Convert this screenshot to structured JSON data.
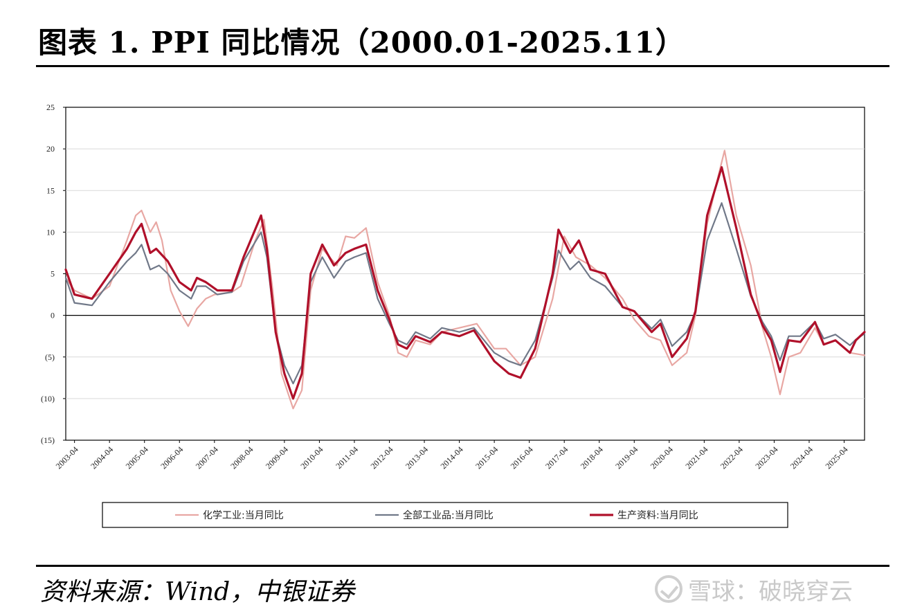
{
  "title": "图表 1. PPI 同比情况（2000.01-2025.11）",
  "source": "资料来源：Wind，中银证券",
  "watermark": {
    "text": "雪球：破晓穿云",
    "icon": "snowball-logo-icon"
  },
  "chart_data": {
    "type": "line",
    "title": "",
    "xlabel": "",
    "ylabel": "",
    "ylim": [
      -15,
      25
    ],
    "yticks": [
      25,
      20,
      15,
      10,
      5,
      0,
      -5,
      -10,
      -15
    ],
    "ytick_labels": [
      "25",
      "20",
      "15",
      "10",
      "5",
      "0",
      "(5)",
      "(10)",
      "(15)"
    ],
    "x_range": [
      "2003-01",
      "2025-11"
    ],
    "x_tick_labels": [
      "2003-04",
      "2004-04",
      "2005-04",
      "2006-04",
      "2007-04",
      "2008-04",
      "2009-04",
      "2010-04",
      "2011-04",
      "2012-04",
      "2013-04",
      "2014-04",
      "2015-04",
      "2016-04",
      "2017-04",
      "2018-04",
      "2019-04",
      "2020-04",
      "2021-04",
      "2022-04",
      "2023-04",
      "2024-04",
      "2025-04"
    ],
    "grid": true,
    "legend_position": "bottom",
    "series": [
      {
        "name": "化学工业:当月同比",
        "color": "#e8a7a3",
        "points": [
          [
            "2003-01",
            4.5
          ],
          [
            "2003-04",
            3.0
          ],
          [
            "2003-10",
            2.0
          ],
          [
            "2004-04",
            3.5
          ],
          [
            "2004-10",
            9.0
          ],
          [
            "2005-01",
            12.0
          ],
          [
            "2005-03",
            12.6
          ],
          [
            "2005-06",
            10.0
          ],
          [
            "2005-08",
            11.2
          ],
          [
            "2005-10",
            9.0
          ],
          [
            "2006-01",
            3.0
          ],
          [
            "2006-04",
            0.5
          ],
          [
            "2006-07",
            -1.3
          ],
          [
            "2006-10",
            0.8
          ],
          [
            "2007-01",
            2.0
          ],
          [
            "2007-04",
            2.5
          ],
          [
            "2007-10",
            2.8
          ],
          [
            "2008-01",
            3.5
          ],
          [
            "2008-06",
            9.0
          ],
          [
            "2008-09",
            11.5
          ],
          [
            "2008-12",
            3.0
          ],
          [
            "2009-03",
            -7.0
          ],
          [
            "2009-07",
            -11.2
          ],
          [
            "2009-10",
            -9.0
          ],
          [
            "2010-01",
            3.0
          ],
          [
            "2010-05",
            8.0
          ],
          [
            "2010-10",
            6.0
          ],
          [
            "2011-01",
            9.5
          ],
          [
            "2011-04",
            9.3
          ],
          [
            "2011-08",
            10.5
          ],
          [
            "2011-12",
            4.0
          ],
          [
            "2012-04",
            0.0
          ],
          [
            "2012-07",
            -4.5
          ],
          [
            "2012-10",
            -5.0
          ],
          [
            "2013-01",
            -3.0
          ],
          [
            "2013-06",
            -3.5
          ],
          [
            "2013-10",
            -2.0
          ],
          [
            "2014-04",
            -1.5
          ],
          [
            "2014-10",
            -1.0
          ],
          [
            "2015-04",
            -4.0
          ],
          [
            "2015-08",
            -4.0
          ],
          [
            "2016-01",
            -6.0
          ],
          [
            "2016-06",
            -5.0
          ],
          [
            "2016-12",
            2.0
          ],
          [
            "2017-04",
            9.5
          ],
          [
            "2017-08",
            7.0
          ],
          [
            "2018-01",
            6.0
          ],
          [
            "2018-06",
            4.5
          ],
          [
            "2018-12",
            2.0
          ],
          [
            "2019-04",
            -0.5
          ],
          [
            "2019-09",
            -2.5
          ],
          [
            "2020-01",
            -3.0
          ],
          [
            "2020-05",
            -6.0
          ],
          [
            "2020-10",
            -4.5
          ],
          [
            "2021-01",
            0.0
          ],
          [
            "2021-05",
            11.0
          ],
          [
            "2021-09",
            17.0
          ],
          [
            "2021-11",
            19.8
          ],
          [
            "2022-03",
            12.0
          ],
          [
            "2022-08",
            6.0
          ],
          [
            "2022-12",
            -1.5
          ],
          [
            "2023-03",
            -5.0
          ],
          [
            "2023-06",
            -9.5
          ],
          [
            "2023-09",
            -5.0
          ],
          [
            "2024-01",
            -4.5
          ],
          [
            "2024-06",
            -1.5
          ],
          [
            "2024-09",
            -3.5
          ],
          [
            "2025-01",
            -3.0
          ],
          [
            "2025-06",
            -4.5
          ],
          [
            "2025-11",
            -4.8
          ]
        ]
      },
      {
        "name": "全部工业品:当月同比",
        "color": "#707888",
        "points": [
          [
            "2003-01",
            4.5
          ],
          [
            "2003-04",
            1.5
          ],
          [
            "2003-10",
            1.2
          ],
          [
            "2004-04",
            4.0
          ],
          [
            "2004-10",
            6.5
          ],
          [
            "2005-01",
            7.5
          ],
          [
            "2005-03",
            8.5
          ],
          [
            "2005-06",
            5.5
          ],
          [
            "2005-09",
            6.0
          ],
          [
            "2005-12",
            5.0
          ],
          [
            "2006-04",
            3.0
          ],
          [
            "2006-08",
            2.0
          ],
          [
            "2006-10",
            3.5
          ],
          [
            "2007-01",
            3.5
          ],
          [
            "2007-05",
            2.5
          ],
          [
            "2007-10",
            2.8
          ],
          [
            "2008-02",
            6.5
          ],
          [
            "2008-08",
            10.0
          ],
          [
            "2008-10",
            7.0
          ],
          [
            "2009-01",
            -2.0
          ],
          [
            "2009-04",
            -6.0
          ],
          [
            "2009-07",
            -8.2
          ],
          [
            "2009-10",
            -6.0
          ],
          [
            "2010-01",
            4.0
          ],
          [
            "2010-05",
            7.0
          ],
          [
            "2010-09",
            4.5
          ],
          [
            "2011-01",
            6.5
          ],
          [
            "2011-04",
            7.0
          ],
          [
            "2011-08",
            7.5
          ],
          [
            "2011-12",
            2.0
          ],
          [
            "2012-04",
            -1.0
          ],
          [
            "2012-07",
            -3.0
          ],
          [
            "2012-10",
            -3.5
          ],
          [
            "2013-01",
            -2.0
          ],
          [
            "2013-06",
            -2.8
          ],
          [
            "2013-10",
            -1.5
          ],
          [
            "2014-04",
            -2.0
          ],
          [
            "2014-09",
            -1.5
          ],
          [
            "2015-04",
            -4.5
          ],
          [
            "2015-09",
            -5.5
          ],
          [
            "2016-01",
            -6.0
          ],
          [
            "2016-06",
            -3.0
          ],
          [
            "2016-12",
            4.5
          ],
          [
            "2017-02",
            7.8
          ],
          [
            "2017-06",
            5.5
          ],
          [
            "2017-09",
            6.5
          ],
          [
            "2018-01",
            4.5
          ],
          [
            "2018-06",
            3.5
          ],
          [
            "2018-12",
            1.0
          ],
          [
            "2019-04",
            0.5
          ],
          [
            "2019-10",
            -1.6
          ],
          [
            "2020-01",
            -0.5
          ],
          [
            "2020-05",
            -3.7
          ],
          [
            "2020-10",
            -2.0
          ],
          [
            "2021-01",
            0.3
          ],
          [
            "2021-05",
            9.0
          ],
          [
            "2021-10",
            13.5
          ],
          [
            "2022-03",
            8.0
          ],
          [
            "2022-08",
            2.3
          ],
          [
            "2022-12",
            -0.8
          ],
          [
            "2023-03",
            -2.5
          ],
          [
            "2023-06",
            -5.4
          ],
          [
            "2023-09",
            -2.5
          ],
          [
            "2024-01",
            -2.5
          ],
          [
            "2024-06",
            -0.8
          ],
          [
            "2024-09",
            -2.8
          ],
          [
            "2025-01",
            -2.3
          ],
          [
            "2025-06",
            -3.6
          ],
          [
            "2025-08",
            -2.9
          ],
          [
            "2025-11",
            -2.2
          ]
        ]
      },
      {
        "name": "生产资料:当月同比",
        "color": "#b0102a",
        "points": [
          [
            "2003-01",
            5.5
          ],
          [
            "2003-04",
            2.5
          ],
          [
            "2003-10",
            2.0
          ],
          [
            "2004-04",
            5.0
          ],
          [
            "2004-10",
            8.0
          ],
          [
            "2005-01",
            10.0
          ],
          [
            "2005-03",
            11.0
          ],
          [
            "2005-06",
            7.5
          ],
          [
            "2005-08",
            8.0
          ],
          [
            "2005-12",
            6.5
          ],
          [
            "2006-04",
            4.0
          ],
          [
            "2006-08",
            3.0
          ],
          [
            "2006-10",
            4.5
          ],
          [
            "2007-01",
            4.0
          ],
          [
            "2007-05",
            3.0
          ],
          [
            "2007-10",
            3.0
          ],
          [
            "2008-02",
            7.0
          ],
          [
            "2008-08",
            12.0
          ],
          [
            "2008-10",
            8.0
          ],
          [
            "2009-01",
            -2.0
          ],
          [
            "2009-04",
            -7.0
          ],
          [
            "2009-07",
            -10.0
          ],
          [
            "2009-10",
            -7.0
          ],
          [
            "2010-01",
            5.0
          ],
          [
            "2010-05",
            8.5
          ],
          [
            "2010-09",
            6.0
          ],
          [
            "2011-01",
            7.5
          ],
          [
            "2011-04",
            8.0
          ],
          [
            "2011-08",
            8.5
          ],
          [
            "2011-12",
            3.0
          ],
          [
            "2012-04",
            -0.5
          ],
          [
            "2012-07",
            -3.5
          ],
          [
            "2012-10",
            -4.0
          ],
          [
            "2013-01",
            -2.5
          ],
          [
            "2013-06",
            -3.2
          ],
          [
            "2013-10",
            -2.0
          ],
          [
            "2014-04",
            -2.5
          ],
          [
            "2014-09",
            -1.8
          ],
          [
            "2015-04",
            -5.5
          ],
          [
            "2015-09",
            -7.0
          ],
          [
            "2016-01",
            -7.5
          ],
          [
            "2016-06",
            -4.0
          ],
          [
            "2016-12",
            5.0
          ],
          [
            "2017-02",
            10.3
          ],
          [
            "2017-06",
            7.5
          ],
          [
            "2017-09",
            9.0
          ],
          [
            "2018-01",
            5.5
          ],
          [
            "2018-06",
            5.0
          ],
          [
            "2018-12",
            1.0
          ],
          [
            "2019-04",
            0.5
          ],
          [
            "2019-10",
            -2.0
          ],
          [
            "2020-01",
            -1.0
          ],
          [
            "2020-05",
            -5.0
          ],
          [
            "2020-10",
            -2.8
          ],
          [
            "2021-01",
            0.5
          ],
          [
            "2021-05",
            12.0
          ],
          [
            "2021-10",
            17.8
          ],
          [
            "2022-03",
            10.5
          ],
          [
            "2022-08",
            2.5
          ],
          [
            "2022-12",
            -1.2
          ],
          [
            "2023-03",
            -3.0
          ],
          [
            "2023-06",
            -6.8
          ],
          [
            "2023-09",
            -3.0
          ],
          [
            "2024-01",
            -3.2
          ],
          [
            "2024-06",
            -0.8
          ],
          [
            "2024-09",
            -3.5
          ],
          [
            "2025-01",
            -3.0
          ],
          [
            "2025-06",
            -4.5
          ],
          [
            "2025-08",
            -3.0
          ],
          [
            "2025-11",
            -2.0
          ]
        ]
      }
    ]
  }
}
